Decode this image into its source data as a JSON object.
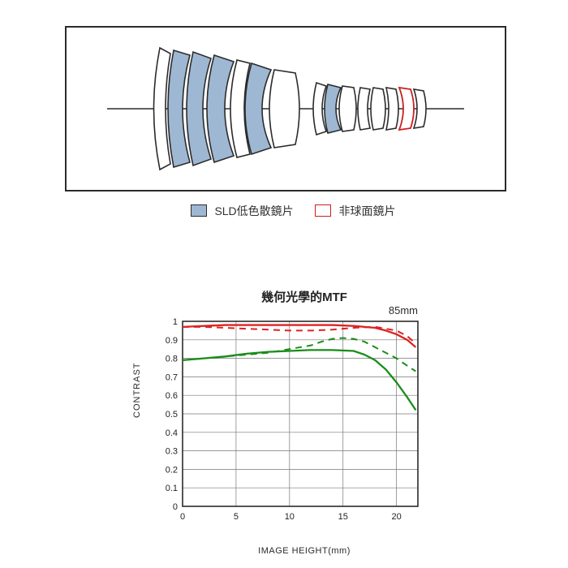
{
  "lens_diagram": {
    "type": "lens-cross-section",
    "frame_color": "#2b2b2b",
    "background": "#ffffff",
    "axis_color": "#2b2b2b",
    "element_outline": "#2b2b2b",
    "sld_fill": "#9eb8d3",
    "aspherical_stroke": "#cc1f1f",
    "legend": {
      "sld_label": "SLD低色散鏡片",
      "aspherical_label": "非球面鏡片"
    }
  },
  "mtf_chart": {
    "type": "line",
    "title": "幾何光學的MTF",
    "focal_label": "85mm",
    "ylabel": "CONTRAST",
    "xlabel": "IMAGE HEIGHT(mm)",
    "xlim": [
      0,
      22
    ],
    "ylim": [
      0,
      1
    ],
    "xticks": [
      0,
      5,
      10,
      15,
      20
    ],
    "yticks": [
      0,
      0.1,
      0.2,
      0.3,
      0.4,
      0.5,
      0.6,
      0.7,
      0.8,
      0.9,
      1
    ],
    "grid_color": "#777777",
    "frame_color": "#2b2b2b",
    "background": "#ffffff",
    "tick_fontsize": 11,
    "title_fontsize": 15,
    "line_width_solid": 2.3,
    "line_width_dashed": 2.0,
    "dash_pattern": "8,6",
    "series": {
      "red_solid": {
        "color": "#dd2323",
        "style": "solid",
        "points": [
          [
            0,
            0.97
          ],
          [
            2,
            0.975
          ],
          [
            4,
            0.98
          ],
          [
            6,
            0.98
          ],
          [
            8,
            0.98
          ],
          [
            10,
            0.98
          ],
          [
            12,
            0.98
          ],
          [
            14,
            0.98
          ],
          [
            16,
            0.975
          ],
          [
            18,
            0.965
          ],
          [
            19,
            0.95
          ],
          [
            20,
            0.93
          ],
          [
            21,
            0.9
          ],
          [
            21.8,
            0.86
          ]
        ]
      },
      "red_dashed": {
        "color": "#dd2323",
        "style": "dashed",
        "points": [
          [
            0,
            0.97
          ],
          [
            2,
            0.97
          ],
          [
            4,
            0.965
          ],
          [
            6,
            0.96
          ],
          [
            8,
            0.955
          ],
          [
            10,
            0.95
          ],
          [
            12,
            0.95
          ],
          [
            14,
            0.955
          ],
          [
            16,
            0.965
          ],
          [
            18,
            0.97
          ],
          [
            20,
            0.95
          ],
          [
            21,
            0.92
          ],
          [
            21.8,
            0.88
          ]
        ]
      },
      "green_solid": {
        "color": "#1a8c1a",
        "style": "solid",
        "points": [
          [
            0,
            0.79
          ],
          [
            2,
            0.8
          ],
          [
            4,
            0.81
          ],
          [
            6,
            0.825
          ],
          [
            8,
            0.835
          ],
          [
            10,
            0.84
          ],
          [
            12,
            0.845
          ],
          [
            14,
            0.845
          ],
          [
            16,
            0.84
          ],
          [
            17,
            0.82
          ],
          [
            18,
            0.79
          ],
          [
            19,
            0.74
          ],
          [
            20,
            0.67
          ],
          [
            21,
            0.59
          ],
          [
            21.8,
            0.52
          ]
        ]
      },
      "green_dashed": {
        "color": "#1a8c1a",
        "style": "dashed",
        "points": [
          [
            0,
            0.79
          ],
          [
            2,
            0.8
          ],
          [
            4,
            0.81
          ],
          [
            6,
            0.82
          ],
          [
            8,
            0.83
          ],
          [
            10,
            0.85
          ],
          [
            12,
            0.87
          ],
          [
            13,
            0.89
          ],
          [
            14,
            0.905
          ],
          [
            15,
            0.91
          ],
          [
            16,
            0.905
          ],
          [
            17,
            0.89
          ],
          [
            18,
            0.86
          ],
          [
            19,
            0.83
          ],
          [
            20,
            0.8
          ],
          [
            21,
            0.76
          ],
          [
            21.8,
            0.73
          ]
        ]
      }
    }
  }
}
